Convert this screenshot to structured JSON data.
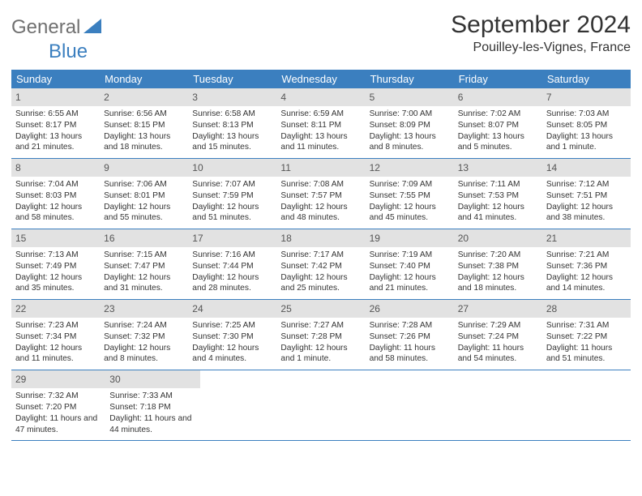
{
  "logo": {
    "main": "General",
    "accent": "Blue"
  },
  "title": "September 2024",
  "location": "Pouilley-les-Vignes, France",
  "dayHeaders": [
    "Sunday",
    "Monday",
    "Tuesday",
    "Wednesday",
    "Thursday",
    "Friday",
    "Saturday"
  ],
  "colors": {
    "headerBg": "#3b7fbf",
    "dayBarBg": "#e2e2e2",
    "text": "#333333",
    "logoGray": "#707070",
    "logoBlue": "#3b7fbf"
  },
  "weeks": [
    [
      {
        "n": "1",
        "sunrise": "6:55 AM",
        "sunset": "8:17 PM",
        "daylight": "13 hours and 21 minutes."
      },
      {
        "n": "2",
        "sunrise": "6:56 AM",
        "sunset": "8:15 PM",
        "daylight": "13 hours and 18 minutes."
      },
      {
        "n": "3",
        "sunrise": "6:58 AM",
        "sunset": "8:13 PM",
        "daylight": "13 hours and 15 minutes."
      },
      {
        "n": "4",
        "sunrise": "6:59 AM",
        "sunset": "8:11 PM",
        "daylight": "13 hours and 11 minutes."
      },
      {
        "n": "5",
        "sunrise": "7:00 AM",
        "sunset": "8:09 PM",
        "daylight": "13 hours and 8 minutes."
      },
      {
        "n": "6",
        "sunrise": "7:02 AM",
        "sunset": "8:07 PM",
        "daylight": "13 hours and 5 minutes."
      },
      {
        "n": "7",
        "sunrise": "7:03 AM",
        "sunset": "8:05 PM",
        "daylight": "13 hours and 1 minute."
      }
    ],
    [
      {
        "n": "8",
        "sunrise": "7:04 AM",
        "sunset": "8:03 PM",
        "daylight": "12 hours and 58 minutes."
      },
      {
        "n": "9",
        "sunrise": "7:06 AM",
        "sunset": "8:01 PM",
        "daylight": "12 hours and 55 minutes."
      },
      {
        "n": "10",
        "sunrise": "7:07 AM",
        "sunset": "7:59 PM",
        "daylight": "12 hours and 51 minutes."
      },
      {
        "n": "11",
        "sunrise": "7:08 AM",
        "sunset": "7:57 PM",
        "daylight": "12 hours and 48 minutes."
      },
      {
        "n": "12",
        "sunrise": "7:09 AM",
        "sunset": "7:55 PM",
        "daylight": "12 hours and 45 minutes."
      },
      {
        "n": "13",
        "sunrise": "7:11 AM",
        "sunset": "7:53 PM",
        "daylight": "12 hours and 41 minutes."
      },
      {
        "n": "14",
        "sunrise": "7:12 AM",
        "sunset": "7:51 PM",
        "daylight": "12 hours and 38 minutes."
      }
    ],
    [
      {
        "n": "15",
        "sunrise": "7:13 AM",
        "sunset": "7:49 PM",
        "daylight": "12 hours and 35 minutes."
      },
      {
        "n": "16",
        "sunrise": "7:15 AM",
        "sunset": "7:47 PM",
        "daylight": "12 hours and 31 minutes."
      },
      {
        "n": "17",
        "sunrise": "7:16 AM",
        "sunset": "7:44 PM",
        "daylight": "12 hours and 28 minutes."
      },
      {
        "n": "18",
        "sunrise": "7:17 AM",
        "sunset": "7:42 PM",
        "daylight": "12 hours and 25 minutes."
      },
      {
        "n": "19",
        "sunrise": "7:19 AM",
        "sunset": "7:40 PM",
        "daylight": "12 hours and 21 minutes."
      },
      {
        "n": "20",
        "sunrise": "7:20 AM",
        "sunset": "7:38 PM",
        "daylight": "12 hours and 18 minutes."
      },
      {
        "n": "21",
        "sunrise": "7:21 AM",
        "sunset": "7:36 PM",
        "daylight": "12 hours and 14 minutes."
      }
    ],
    [
      {
        "n": "22",
        "sunrise": "7:23 AM",
        "sunset": "7:34 PM",
        "daylight": "12 hours and 11 minutes."
      },
      {
        "n": "23",
        "sunrise": "7:24 AM",
        "sunset": "7:32 PM",
        "daylight": "12 hours and 8 minutes."
      },
      {
        "n": "24",
        "sunrise": "7:25 AM",
        "sunset": "7:30 PM",
        "daylight": "12 hours and 4 minutes."
      },
      {
        "n": "25",
        "sunrise": "7:27 AM",
        "sunset": "7:28 PM",
        "daylight": "12 hours and 1 minute."
      },
      {
        "n": "26",
        "sunrise": "7:28 AM",
        "sunset": "7:26 PM",
        "daylight": "11 hours and 58 minutes."
      },
      {
        "n": "27",
        "sunrise": "7:29 AM",
        "sunset": "7:24 PM",
        "daylight": "11 hours and 54 minutes."
      },
      {
        "n": "28",
        "sunrise": "7:31 AM",
        "sunset": "7:22 PM",
        "daylight": "11 hours and 51 minutes."
      }
    ],
    [
      {
        "n": "29",
        "sunrise": "7:32 AM",
        "sunset": "7:20 PM",
        "daylight": "11 hours and 47 minutes."
      },
      {
        "n": "30",
        "sunrise": "7:33 AM",
        "sunset": "7:18 PM",
        "daylight": "11 hours and 44 minutes."
      },
      null,
      null,
      null,
      null,
      null
    ]
  ],
  "labels": {
    "sunrise": "Sunrise:",
    "sunset": "Sunset:",
    "daylight": "Daylight:"
  }
}
